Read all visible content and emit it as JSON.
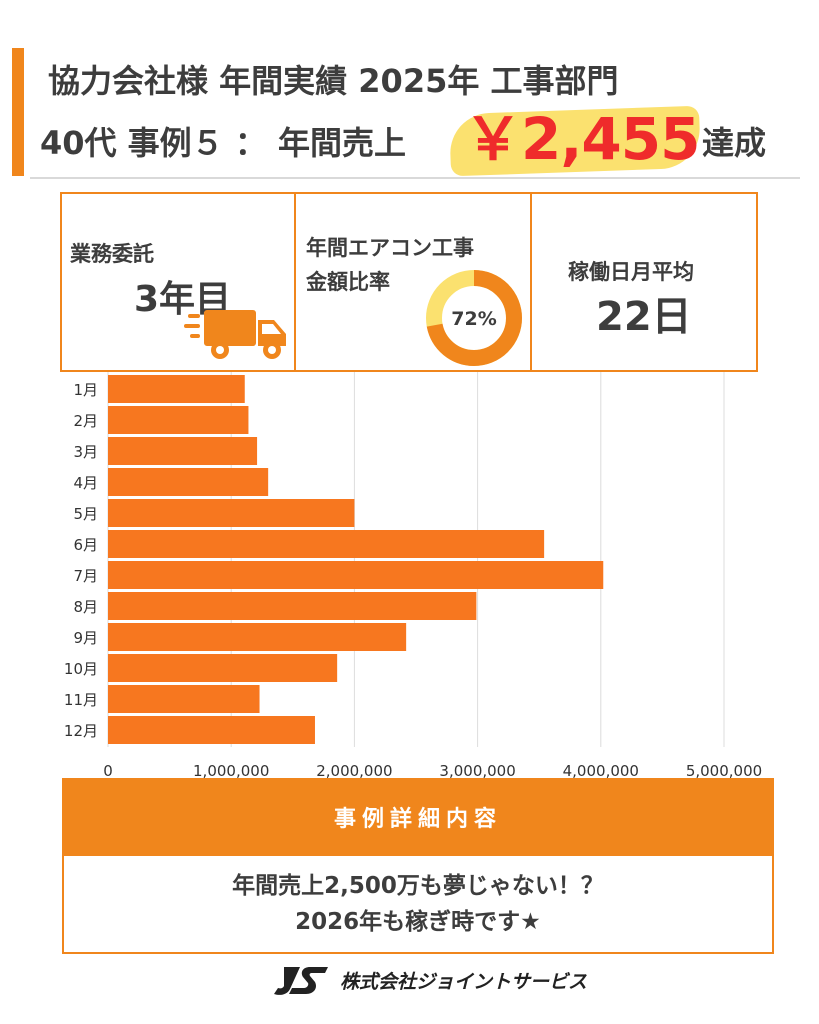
{
  "header": {
    "title_line1": "協力会社様 年間実績 2025年 工事部門",
    "title_line2": "40代 事例５ ： 年間売上",
    "amount": "￥2,455",
    "suffix": "達成"
  },
  "stats": {
    "contract": {
      "label": "業務委託",
      "value": "3年目",
      "icon": "delivery-truck-icon"
    },
    "aircon": {
      "label_line1": "年間エアコン工事",
      "label_line2": "金額比率",
      "percent_text": "72%",
      "percent": 72
    },
    "workdays": {
      "label": "稼働日月平均",
      "value": "22日"
    }
  },
  "chart_data": {
    "type": "bar",
    "orientation": "horizontal",
    "categories": [
      "1月",
      "2月",
      "3月",
      "4月",
      "5月",
      "6月",
      "7月",
      "8月",
      "9月",
      "10月",
      "11月",
      "12月"
    ],
    "values": [
      1110000,
      1140000,
      1210000,
      1300000,
      2000000,
      3540000,
      4020000,
      2990000,
      2420000,
      1860000,
      1230000,
      1680000
    ],
    "x_ticks": [
      0,
      1000000,
      2000000,
      3000000,
      4000000,
      5000000
    ],
    "x_tick_labels": [
      "0",
      "1,000,000",
      "2,000,000",
      "3,000,000",
      "4,000,000",
      "5,000,000"
    ],
    "xlim": [
      0,
      5000000
    ],
    "grid": "vertical",
    "title": "",
    "xlabel": "",
    "ylabel": ""
  },
  "detail": {
    "header": "事例詳細内容",
    "line1": "年間売上2,500万も夢じゃない！？",
    "line2": "2026年も稼ぎ時です★"
  },
  "footer": {
    "company": "株式会社ジョイントサービス",
    "logo": "js-logo"
  },
  "colors": {
    "accent": "#f0861c",
    "bar": "#f7771f",
    "amount": "#ef2b2b",
    "highlight": "#fbe16f",
    "donut_light": "#fbe16f",
    "text": "#3d3d3d"
  }
}
